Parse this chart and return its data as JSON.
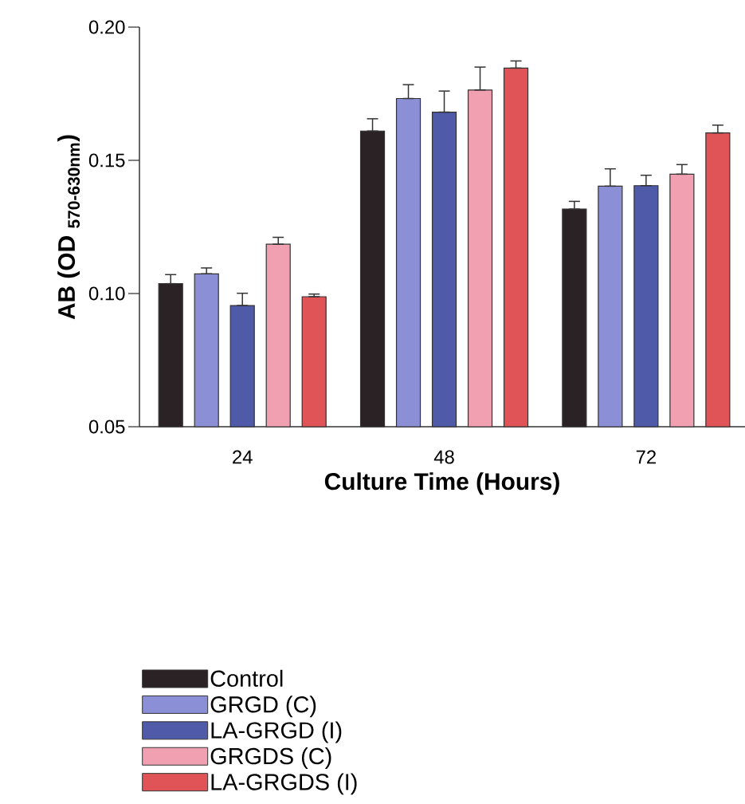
{
  "chart_data": {
    "type": "bar",
    "xlabel": "Culture Time (Hours)",
    "ylabel": "AB (OD $_{570-630nm}$)",
    "categories": [
      "24",
      "48",
      "72"
    ],
    "ylim": [
      0.05,
      0.2
    ],
    "yticks": [
      {
        "value": 0.05,
        "label": "0.05"
      },
      {
        "value": 0.1,
        "label": "0.10"
      },
      {
        "value": 0.15,
        "label": "0.15"
      },
      {
        "value": 0.2,
        "label": "0.20"
      }
    ],
    "legend": "bottom",
    "grid": false,
    "series": [
      {
        "name": "Control",
        "color": "#2a2224",
        "values": [
          0.1037,
          0.161,
          0.1317
        ],
        "errors": [
          [
            0.1037,
            0.1071
          ],
          [
            0.161,
            0.1656
          ],
          [
            0.1317,
            0.1346
          ]
        ]
      },
      {
        "name": "GRGD (C)",
        "color": "#8b8fd6",
        "values": [
          0.1074,
          0.1732,
          0.1403
        ],
        "errors": [
          [
            0.1074,
            0.1096
          ],
          [
            0.1732,
            0.1784
          ],
          [
            0.1403,
            0.1468
          ]
        ]
      },
      {
        "name": "LA-GRGD (I)",
        "color": "#4f5aa8",
        "values": [
          0.0955,
          0.1681,
          0.1405
        ],
        "errors": [
          [
            0.0955,
            0.1001
          ],
          [
            0.1681,
            0.176
          ],
          [
            0.1405,
            0.1444
          ]
        ]
      },
      {
        "name": "GRGDS (C)",
        "color": "#f0a0b0",
        "values": [
          0.1185,
          0.1764,
          0.1448
        ],
        "errors": [
          [
            0.1185,
            0.1211
          ],
          [
            0.1764,
            0.185
          ],
          [
            0.1448,
            0.1484
          ]
        ]
      },
      {
        "name": "LA-GRGDS (I)",
        "color": "#e05458",
        "values": [
          0.0988,
          0.1846,
          0.1603
        ],
        "errors": [
          [
            0.0988,
            0.0998
          ],
          [
            0.1846,
            0.1873
          ],
          [
            0.1603,
            0.1632
          ]
        ]
      }
    ]
  }
}
